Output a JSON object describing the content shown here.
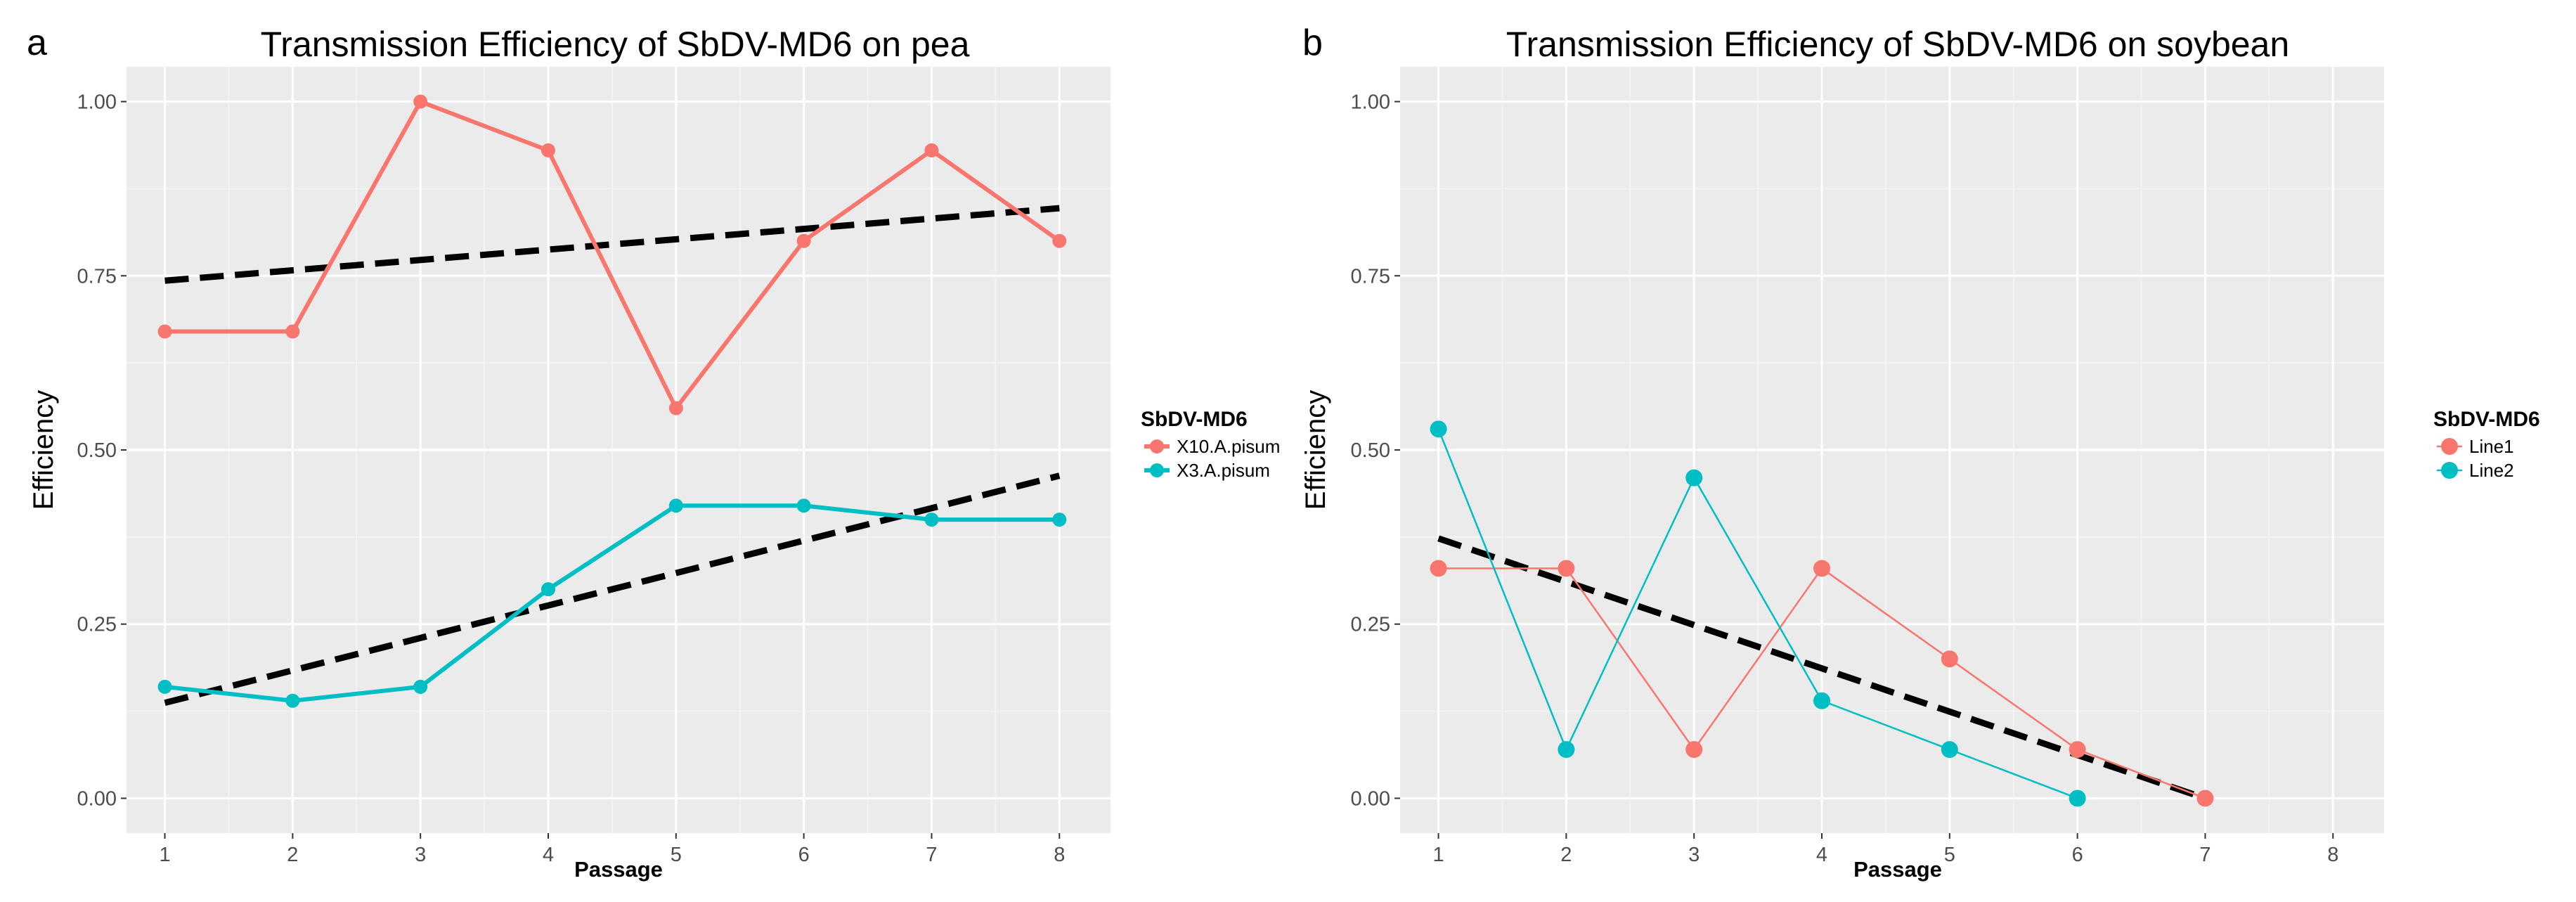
{
  "chart_data": [
    {
      "panel": "a",
      "type": "line",
      "title": "Transmission Efficiency of SbDV-MD6 on pea",
      "xlabel": "Passage",
      "ylabel": "Efficiency",
      "xlim": [
        0.7,
        8.4
      ],
      "ylim": [
        -0.05,
        1.05
      ],
      "xticks": [
        1,
        2,
        3,
        4,
        5,
        6,
        7,
        8
      ],
      "yticks": [
        0,
        0.25,
        0.5,
        0.75,
        1.0
      ],
      "ytick_labels": [
        "0.00",
        "0.25",
        "0.50",
        "0.75",
        "1.00"
      ],
      "legend_title": "SbDV-MD6",
      "legend_position": "right",
      "line_weight": "thick",
      "series": [
        {
          "name": "X10.A.pisum",
          "color": "#F8766D",
          "x": [
            1,
            2,
            3,
            4,
            5,
            6,
            7,
            8
          ],
          "values": [
            0.67,
            0.67,
            1.0,
            0.93,
            0.56,
            0.8,
            0.93,
            0.8
          ]
        },
        {
          "name": "X3.A.pisum",
          "color": "#00BFC4",
          "x": [
            1,
            2,
            3,
            4,
            5,
            6,
            7,
            8
          ],
          "values": [
            0.16,
            0.14,
            0.16,
            0.3,
            0.42,
            0.42,
            0.4,
            0.4
          ]
        }
      ],
      "trendlines": [
        {
          "x": [
            1,
            8
          ],
          "values": [
            0.743,
            0.847
          ],
          "style": "dashed",
          "color": "#000000"
        },
        {
          "x": [
            1,
            8
          ],
          "values": [
            0.137,
            0.463
          ],
          "style": "dashed",
          "color": "#000000"
        }
      ]
    },
    {
      "panel": "b",
      "type": "line",
      "title": "Transmission Efficiency of SbDV-MD6 on soybean",
      "xlabel": "Passage",
      "ylabel": "Efficiency",
      "xlim": [
        0.7,
        8.4
      ],
      "ylim": [
        -0.05,
        1.05
      ],
      "xticks": [
        1,
        2,
        3,
        4,
        5,
        6,
        7,
        8
      ],
      "yticks": [
        0,
        0.25,
        0.5,
        0.75,
        1.0
      ],
      "ytick_labels": [
        "0.00",
        "0.25",
        "0.50",
        "0.75",
        "1.00"
      ],
      "legend_title": "SbDV-MD6",
      "legend_position": "right",
      "line_weight": "thin",
      "series": [
        {
          "name": "Line1",
          "color": "#F8766D",
          "x": [
            1,
            2,
            3,
            4,
            5,
            6,
            7
          ],
          "values": [
            0.33,
            0.33,
            0.07,
            0.33,
            0.2,
            0.07,
            0.0
          ]
        },
        {
          "name": "Line2",
          "color": "#00BFC4",
          "x": [
            1,
            2,
            3,
            4,
            5,
            6
          ],
          "values": [
            0.53,
            0.07,
            0.46,
            0.14,
            0.07,
            0.0
          ]
        }
      ],
      "trendlines": [
        {
          "x": [
            1,
            7
          ],
          "values": [
            0.373,
            0.0
          ],
          "style": "dashed",
          "color": "#000000"
        }
      ]
    }
  ]
}
